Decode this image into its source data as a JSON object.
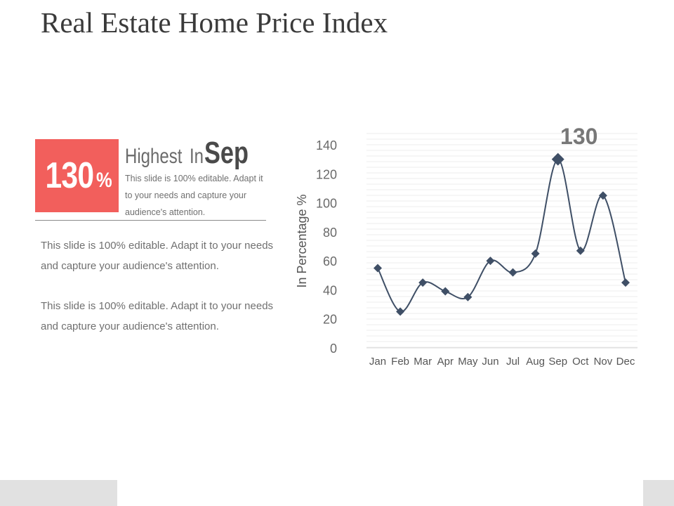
{
  "title": "Real Estate Home Price Index",
  "badge": {
    "value": "130",
    "unit": "%"
  },
  "highlight": {
    "word": "Highest",
    "in": "In",
    "month": "Sep",
    "text": "This slide is 100% editable. Adapt it to your needs and capture your audience's attention."
  },
  "paragraphs": [
    "This slide is 100% editable. Adapt it to your needs and capture your audience's attention.",
    "This slide is 100% editable. Adapt it to your needs and capture your audience's attention."
  ],
  "colors": {
    "accent": "#f25f5c",
    "line": "#3f4f66",
    "text": "#707070"
  },
  "chart_data": {
    "type": "line",
    "categories": [
      "Jan",
      "Feb",
      "Mar",
      "Apr",
      "May",
      "Jun",
      "Jul",
      "Aug",
      "Sep",
      "Oct",
      "Nov",
      "Dec"
    ],
    "series": [
      {
        "values": [
          55,
          25,
          45,
          39,
          35,
          60,
          52,
          65,
          130,
          67,
          105,
          45
        ]
      }
    ],
    "ylabel": "In Percentage %",
    "ylim": [
      0,
      140
    ],
    "yticks": [
      0,
      20,
      40,
      60,
      80,
      100,
      120,
      140
    ],
    "annotation": {
      "category": "Sep",
      "text": "130"
    },
    "marker": "diamond",
    "smooth": true,
    "grid": true
  }
}
